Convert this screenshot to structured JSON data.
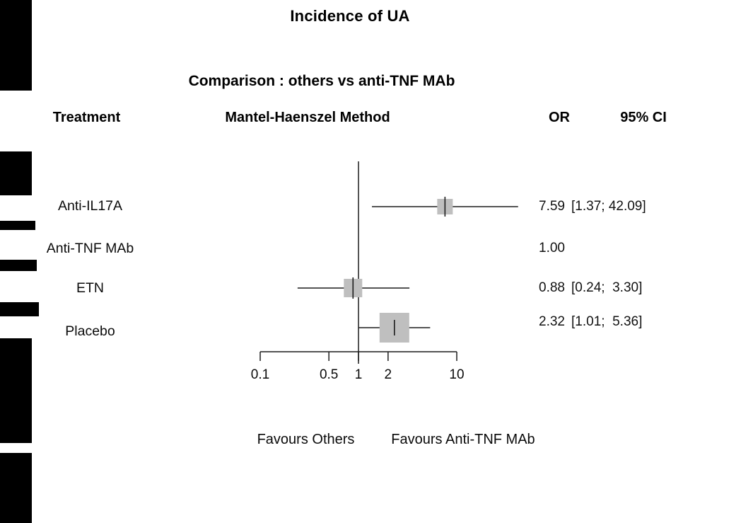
{
  "chart_data": {
    "type": "forest",
    "title": "Incidence of UA",
    "subtitle": "Comparison : others vs anti-TNF MAb",
    "columns": {
      "treatment": "Treatment",
      "method": "Mantel-Haenszel Method",
      "or": "OR",
      "ci": "95% CI"
    },
    "x_scale": "log10",
    "x_range": [
      0.1,
      10
    ],
    "x_tick_values": [
      0.1,
      0.5,
      1,
      2,
      10
    ],
    "x_tick_labels": [
      "0.1",
      "0.5",
      "1",
      "2",
      "10"
    ],
    "reference_or": 1.0,
    "footer_left": "Favours Others",
    "footer_right": "Favours Anti-TNF MAb",
    "rows": [
      {
        "treatment": "Anti-IL17A",
        "or": 7.59,
        "ci_low": 1.37,
        "ci_high": 42.09,
        "or_label": "7.59",
        "ci_label": "[1.37; 42.09]",
        "marker_px": 22
      },
      {
        "treatment": "Anti-TNF MAb",
        "or": 1.0,
        "ci_low": null,
        "ci_high": null,
        "or_label": "1.00",
        "ci_label": "",
        "marker_px": 0
      },
      {
        "treatment": "ETN",
        "or": 0.88,
        "ci_low": 0.24,
        "ci_high": 3.3,
        "or_label": "0.88",
        "ci_label": "[0.24;  3.30]",
        "marker_px": 26
      },
      {
        "treatment": "Placebo",
        "or": 2.32,
        "ci_low": 1.01,
        "ci_high": 5.36,
        "or_label": "2.32",
        "ci_label": "[1.01;  5.36]",
        "marker_px": 42
      }
    ],
    "marker_color": "#bfbfbf",
    "line_color": "#1c1c1c"
  }
}
